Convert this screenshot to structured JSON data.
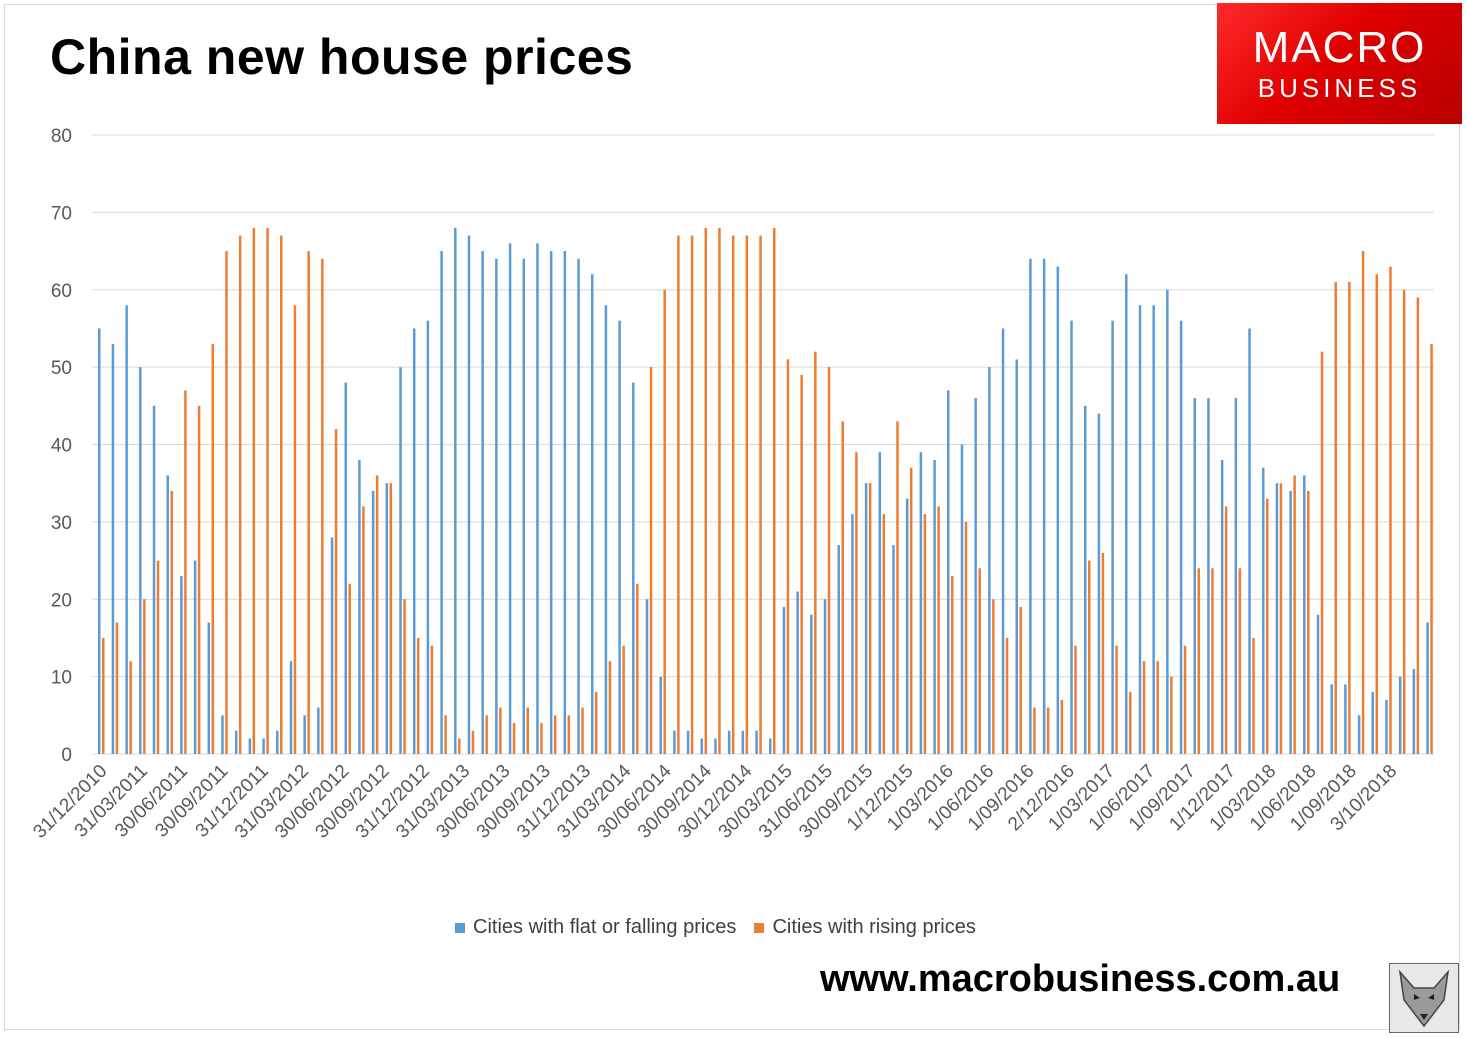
{
  "chart_data": {
    "type": "bar",
    "title": "China new house prices",
    "ylim": [
      0,
      80
    ],
    "yticks": [
      0,
      10,
      20,
      30,
      40,
      50,
      60,
      70,
      80
    ],
    "grid": true,
    "legend_position": "bottom",
    "tick_labels": [
      "31/12/2010",
      "31/03/2011",
      "30/06/2011",
      "30/09/2011",
      "31/12/2011",
      "31/03/2012",
      "30/06/2012",
      "30/09/2012",
      "31/12/2012",
      "31/03/2013",
      "30/06/2013",
      "30/09/2013",
      "31/12/2013",
      "31/03/2014",
      "30/06/2014",
      "30/09/2014",
      "30/12/2014",
      "30/03/2015",
      "31/06/2015",
      "30/09/2015",
      "1/12/2015",
      "1/03/2016",
      "1/06/2016",
      "1/09/2016",
      "2/12/2016",
      "1/03/2017",
      "1/06/2017",
      "1/09/2017",
      "1/12/2017",
      "1/03/2018",
      "1/06/2018",
      "1/09/2018",
      "3/10/2018"
    ],
    "series": [
      {
        "name": "Cities with flat or falling prices",
        "color": "#5b9bd5",
        "values": [
          55,
          53,
          58,
          50,
          45,
          36,
          23,
          25,
          17,
          5,
          3,
          2,
          2,
          3,
          12,
          5,
          6,
          28,
          48,
          38,
          34,
          35,
          50,
          55,
          56,
          65,
          68,
          67,
          65,
          64,
          66,
          64,
          66,
          65,
          65,
          64,
          62,
          58,
          56,
          48,
          20,
          10,
          3,
          3,
          2,
          2,
          3,
          3,
          3,
          2,
          19,
          21,
          18,
          20,
          27,
          31,
          35,
          39,
          27,
          33,
          39,
          38,
          47,
          40,
          46,
          50,
          55,
          51,
          64,
          64,
          63,
          56,
          45,
          44,
          56,
          62,
          58,
          58,
          60,
          56,
          46,
          46,
          38,
          46,
          55,
          37,
          35,
          34,
          36,
          18,
          9,
          9,
          5,
          8,
          7,
          10,
          11,
          17
        ]
      },
      {
        "name": "Cities with rising prices",
        "color": "#ed7d31",
        "values": [
          15,
          17,
          12,
          20,
          25,
          34,
          47,
          45,
          53,
          65,
          67,
          68,
          68,
          67,
          58,
          65,
          64,
          42,
          22,
          32,
          36,
          35,
          20,
          15,
          14,
          5,
          2,
          3,
          5,
          6,
          4,
          6,
          4,
          5,
          5,
          6,
          8,
          12,
          14,
          22,
          50,
          60,
          67,
          67,
          68,
          68,
          67,
          67,
          67,
          68,
          51,
          49,
          52,
          50,
          43,
          39,
          35,
          31,
          43,
          37,
          31,
          32,
          23,
          30,
          24,
          20,
          15,
          19,
          6,
          6,
          7,
          14,
          25,
          26,
          14,
          8,
          12,
          12,
          10,
          14,
          24,
          24,
          32,
          24,
          15,
          33,
          35,
          36,
          34,
          52,
          61,
          61,
          65,
          62,
          63,
          60,
          59,
          53
        ]
      }
    ]
  },
  "branding": {
    "logo_line1": "MACRO",
    "logo_line2": "BUSINESS",
    "website": "www.macrobusiness.com.au",
    "fox_icon": "fox-icon"
  }
}
